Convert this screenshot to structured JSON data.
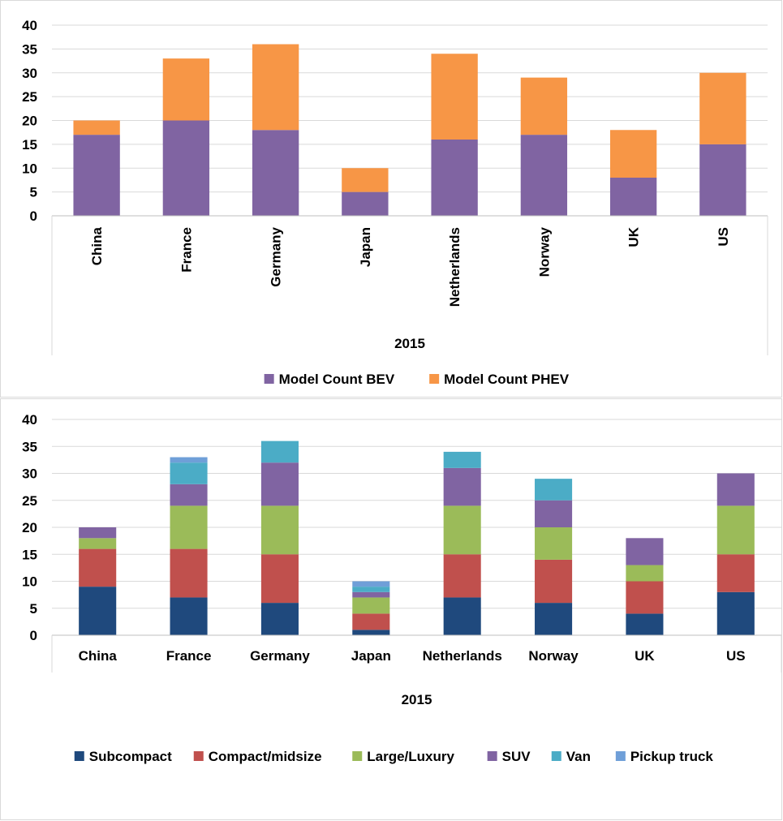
{
  "chart_data": [
    {
      "type": "bar",
      "stacked": true,
      "categories": [
        "China",
        "France",
        "Germany",
        "Japan",
        "Netherlands",
        "Norway",
        "UK",
        "US"
      ],
      "xlabel": "2015",
      "ylim": [
        0,
        40
      ],
      "yticks": [
        0,
        5,
        10,
        15,
        20,
        25,
        30,
        35,
        40
      ],
      "grid": true,
      "legend_position": "bottom",
      "category_label_rotation": "vertical",
      "series": [
        {
          "name": "Model Count BEV",
          "color": "#8064a2",
          "values": [
            17,
            20,
            18,
            5,
            16,
            17,
            8,
            15
          ]
        },
        {
          "name": "Model Count PHEV",
          "color": "#f79646",
          "values": [
            3,
            13,
            18,
            5,
            18,
            12,
            10,
            15
          ]
        }
      ]
    },
    {
      "type": "bar",
      "stacked": true,
      "categories": [
        "China",
        "France",
        "Germany",
        "Japan",
        "Netherlands",
        "Norway",
        "UK",
        "US"
      ],
      "xlabel": "2015",
      "ylim": [
        0,
        40
      ],
      "yticks": [
        0,
        5,
        10,
        15,
        20,
        25,
        30,
        35,
        40
      ],
      "grid": true,
      "legend_position": "bottom",
      "category_label_rotation": "horizontal",
      "series": [
        {
          "name": "Subcompact",
          "color": "#1f497d",
          "values": [
            9,
            7,
            6,
            1,
            7,
            6,
            4,
            8
          ]
        },
        {
          "name": "Compact/midsize",
          "color": "#c0504d",
          "values": [
            7,
            9,
            9,
            3,
            8,
            8,
            6,
            7
          ]
        },
        {
          "name": "Large/Luxury",
          "color": "#9bbb59",
          "values": [
            2,
            8,
            9,
            3,
            9,
            6,
            3,
            9
          ]
        },
        {
          "name": "SUV",
          "color": "#8064a2",
          "values": [
            2,
            4,
            8,
            1,
            7,
            5,
            5,
            6
          ]
        },
        {
          "name": "Van",
          "color": "#4bacc6",
          "values": [
            0,
            4,
            4,
            1,
            3,
            4,
            0,
            0
          ]
        },
        {
          "name": "Pickup truck",
          "color": "#6f9fd8",
          "values": [
            0,
            1,
            0,
            1,
            0,
            0,
            0,
            0
          ]
        }
      ]
    }
  ]
}
